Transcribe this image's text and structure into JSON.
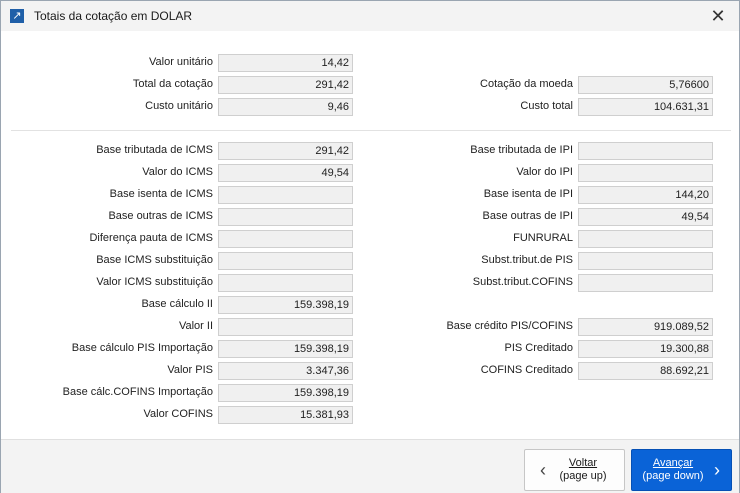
{
  "window": {
    "title": "Totais da cotação em DOLAR",
    "app_icon": "↗",
    "close_icon": "✕"
  },
  "top": {
    "valor_unitario": {
      "label": "Valor unitário",
      "value": "14,42"
    },
    "total_cotacao": {
      "label": "Total da cotação",
      "value": "291,42"
    },
    "custo_unitario": {
      "label": "Custo unitário",
      "value": "9,46"
    },
    "cotacao_moeda": {
      "label": "Cotação da moeda",
      "value": "5,76600"
    },
    "custo_total": {
      "label": "Custo total",
      "value": "104.631,31"
    }
  },
  "left": {
    "base_tributada_icms": {
      "label": "Base tributada de ICMS",
      "value": "291,42"
    },
    "valor_icms": {
      "label": "Valor do ICMS",
      "value": "49,54"
    },
    "base_isenta_icms": {
      "label": "Base isenta de ICMS",
      "value": ""
    },
    "base_outras_icms": {
      "label": "Base outras de ICMS",
      "value": ""
    },
    "diferenca_pauta_icms": {
      "label": "Diferença pauta de ICMS",
      "value": ""
    },
    "base_icms_subst": {
      "label": "Base ICMS substituição",
      "value": ""
    },
    "valor_icms_subst": {
      "label": "Valor ICMS substituição",
      "value": ""
    },
    "base_calculo_ii": {
      "label": "Base cálculo II",
      "value": "159.398,19"
    },
    "valor_ii": {
      "label": "Valor II",
      "value": ""
    },
    "base_calc_pis_imp": {
      "label": "Base cálculo PIS Importação",
      "value": "159.398,19"
    },
    "valor_pis": {
      "label": "Valor PIS",
      "value": "3.347,36"
    },
    "base_calc_cofins_imp": {
      "label": "Base cálc.COFINS Importação",
      "value": "159.398,19"
    },
    "valor_cofins": {
      "label": "Valor COFINS",
      "value": "15.381,93"
    }
  },
  "right": {
    "base_tributada_ipi": {
      "label": "Base tributada de IPI",
      "value": ""
    },
    "valor_ipi": {
      "label": "Valor do IPI",
      "value": ""
    },
    "base_isenta_ipi": {
      "label": "Base isenta de IPI",
      "value": "144,20"
    },
    "base_outras_ipi": {
      "label": "Base outras de IPI",
      "value": "49,54"
    },
    "funrural": {
      "label": "FUNRURAL",
      "value": ""
    },
    "subst_pis": {
      "label": "Subst.tribut.de PIS",
      "value": ""
    },
    "subst_cofins": {
      "label": "Subst.tribut.COFINS",
      "value": ""
    },
    "base_credito_pis_cofins": {
      "label": "Base crédito PIS/COFINS",
      "value": "919.089,52"
    },
    "pis_creditado": {
      "label": "PIS Creditado",
      "value": "19.300,88"
    },
    "cofins_creditado": {
      "label": "COFINS Creditado",
      "value": "88.692,21"
    }
  },
  "buttons": {
    "back": {
      "line1": "Voltar",
      "line2": "(page up)",
      "icon": "‹"
    },
    "next": {
      "line1": "Avançar",
      "line2": "(page down)",
      "icon": "›"
    }
  },
  "colors": {
    "primary_button": "#0a63d7",
    "field_background": "#f0f0f0"
  }
}
